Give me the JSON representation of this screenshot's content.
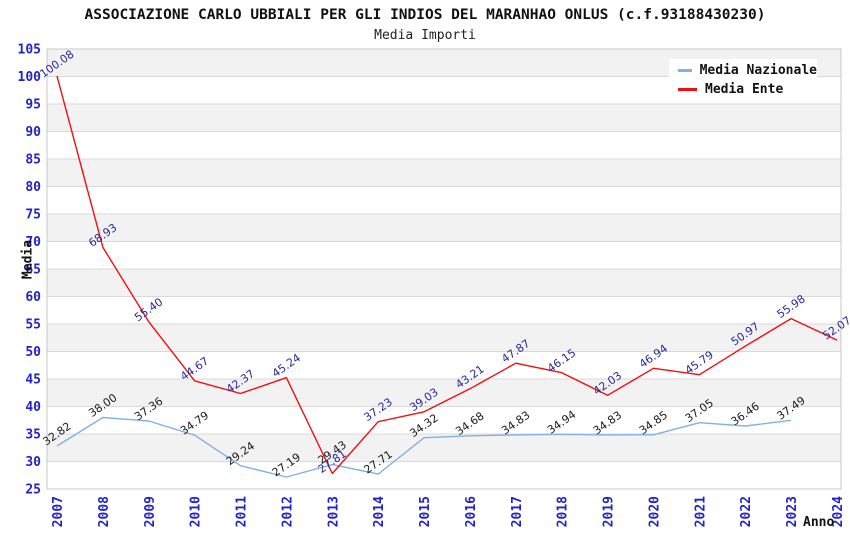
{
  "chart_data": {
    "type": "line",
    "title": "ASSOCIAZIONE CARLO UBBIALI PER GLI INDIOS DEL MARANHAO ONLUS (c.f.93188430230)",
    "subtitle": "Media Importi",
    "xlabel": "Anno",
    "ylabel": "Media",
    "ylim": [
      25,
      105
    ],
    "ytick_step": 5,
    "grid": "horizontal-bands",
    "legend_position": "top-right",
    "x": [
      "2007",
      "2008",
      "2009",
      "2010",
      "2011",
      "2012",
      "2013",
      "2014",
      "2015",
      "2016",
      "2017",
      "2018",
      "2019",
      "2020",
      "2021",
      "2022",
      "2023",
      "2024"
    ],
    "series": [
      {
        "name": "Media Nazionale",
        "color": "#7fb2e5",
        "label_color": "#1a1a1a",
        "values": [
          32.82,
          38.0,
          37.36,
          34.79,
          29.24,
          27.19,
          29.43,
          27.71,
          34.32,
          34.68,
          34.83,
          34.94,
          34.83,
          34.85,
          37.05,
          36.46,
          37.49,
          null
        ]
      },
      {
        "name": "Media Ente",
        "color": "#ee1010",
        "label_color": "#28289c",
        "values": [
          100.08,
          68.93,
          55.4,
          44.67,
          42.37,
          45.24,
          27.81,
          37.23,
          39.03,
          43.21,
          47.87,
          46.15,
          42.03,
          46.94,
          45.79,
          50.97,
          55.98,
          52.07
        ]
      }
    ],
    "colors": {
      "tick_label": "#2222cc",
      "band_gray": "#f2f2f2",
      "band_white": "#ffffff",
      "grid_line": "#d9d9d9",
      "plot_border": "#c8c8c8"
    }
  }
}
